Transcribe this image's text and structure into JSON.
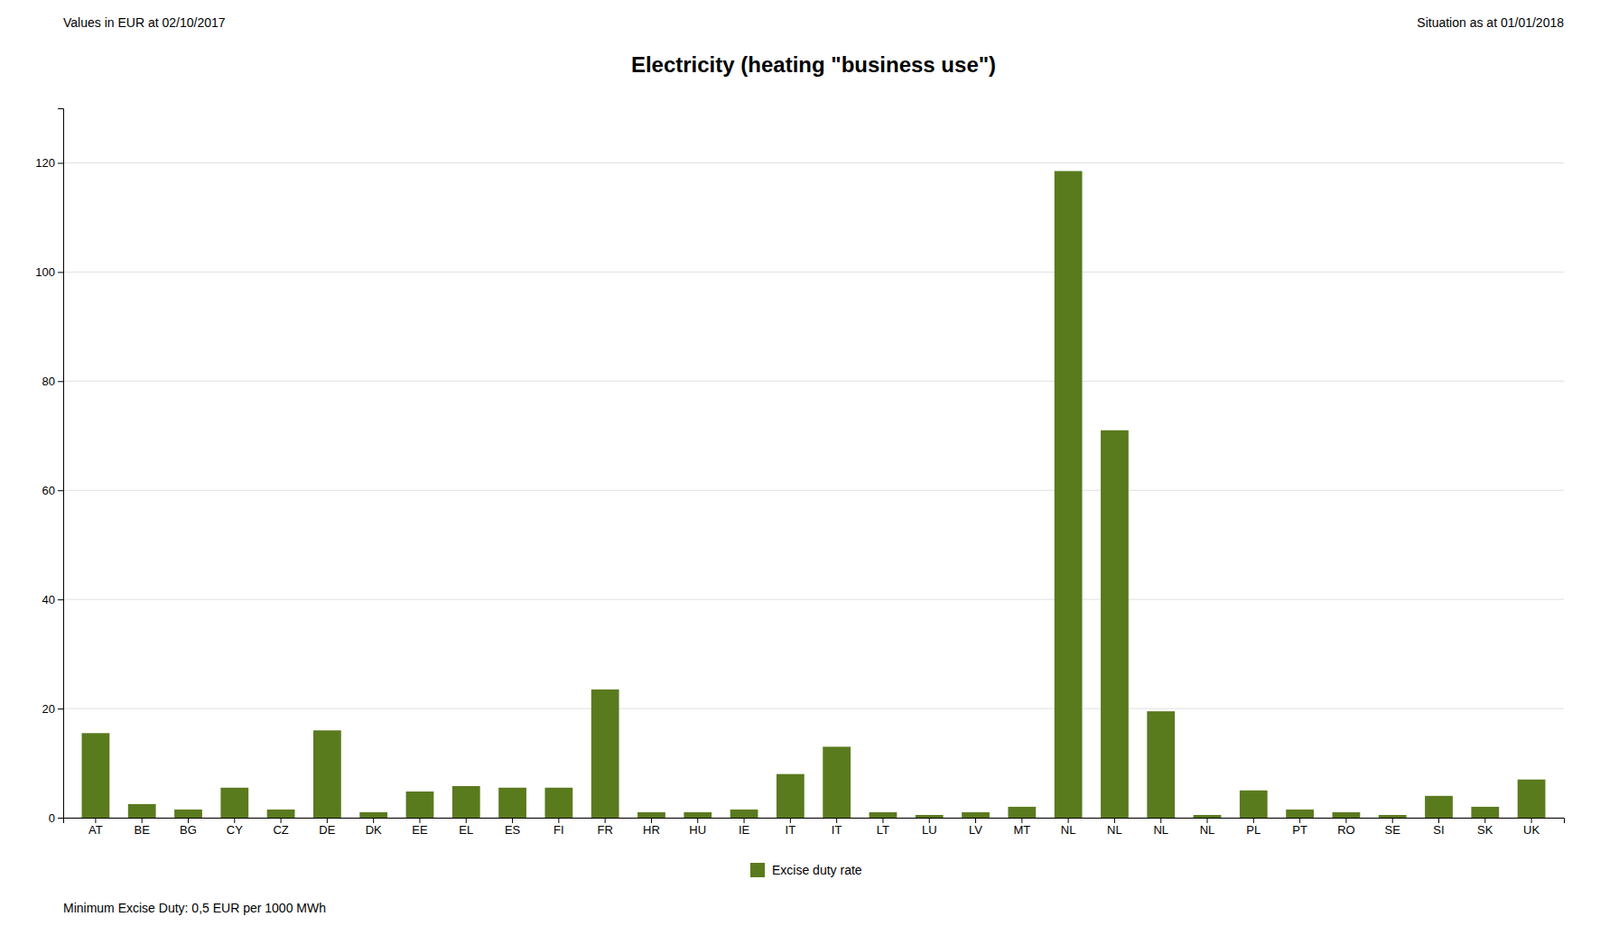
{
  "chart_data": {
    "type": "bar",
    "title": "Electricity (heating \"business use\")",
    "subtitle": "Values in EUR at 02/10/2017",
    "annotations": [
      "Situation as at 01/01/2018",
      "Minimum Excise Duty: 0,5 EUR per 1000 MWh"
    ],
    "categories": [
      "AT",
      "BE",
      "BG",
      "CY",
      "CZ",
      "DE",
      "DK",
      "EE",
      "EL",
      "ES",
      "FI",
      "FR",
      "HR",
      "HU",
      "IE",
      "IT",
      "IT",
      "LT",
      "LU",
      "LV",
      "MT",
      "NL",
      "NL",
      "NL",
      "NL",
      "PL",
      "PT",
      "RO",
      "SE",
      "SI",
      "SK",
      "UK"
    ],
    "series": [
      {
        "name": "Excise duty rate",
        "color": "#5a7a1e",
        "values": [
          15.5,
          2.5,
          1.5,
          5.5,
          1.5,
          16.0,
          1.0,
          4.8,
          5.8,
          5.5,
          5.5,
          23.5,
          1.0,
          1.0,
          1.5,
          8.0,
          13.0,
          1.0,
          0.5,
          1.0,
          2.0,
          118.5,
          71.0,
          19.5,
          0.5,
          5.0,
          1.5,
          1.0,
          0.5,
          4.0,
          2.0,
          7.0
        ]
      }
    ],
    "ylim": [
      0,
      130
    ],
    "yticks": [
      0,
      20,
      40,
      60,
      80,
      100,
      120
    ],
    "grid": true,
    "legend": "bottom"
  }
}
